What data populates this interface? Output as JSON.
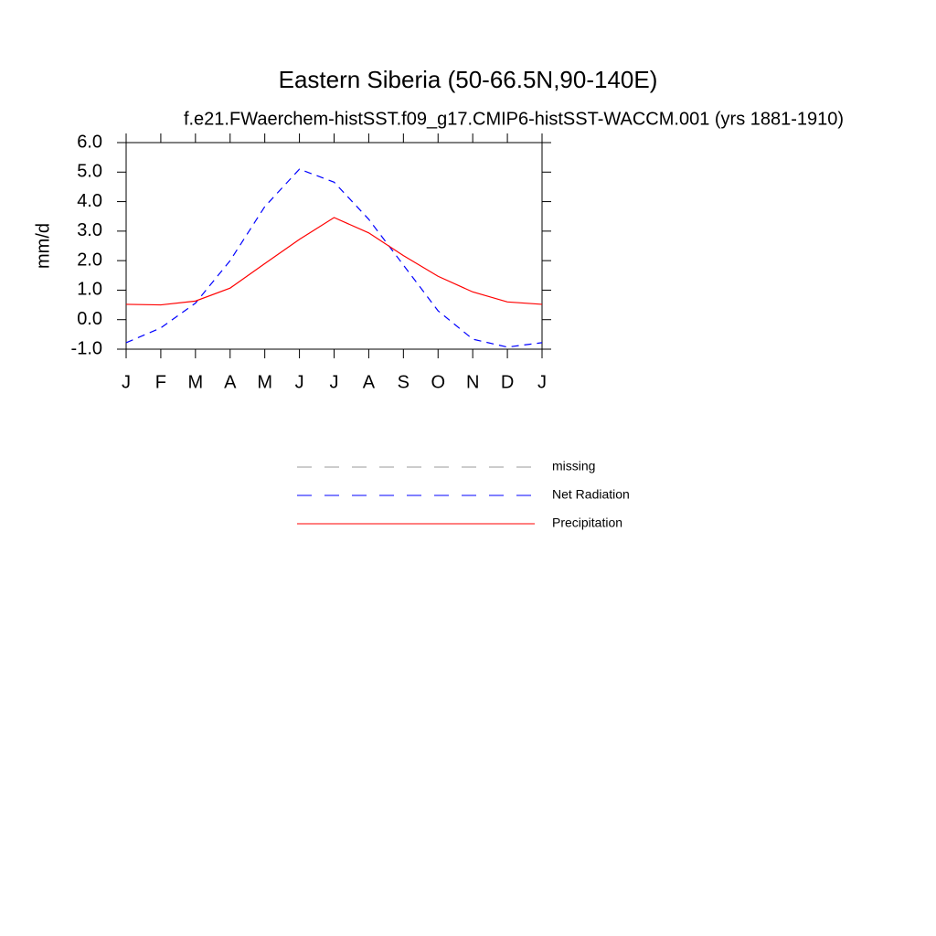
{
  "chart_data": {
    "type": "line",
    "title": "Eastern Siberia (50-66.5N,90-140E)",
    "subtitle": "f.e21.FWaerchem-histSST.f09_g17.CMIP6-histSST-WACCM.001 (yrs 1881-1910)",
    "y_label": "mm/d",
    "categories": [
      "J",
      "F",
      "M",
      "A",
      "M",
      "J",
      "J",
      "A",
      "S",
      "O",
      "N",
      "D",
      "J"
    ],
    "series": [
      {
        "name": "missing",
        "color": "#999999",
        "dash": true,
        "values": [
          null,
          null,
          null,
          null,
          null,
          null,
          null,
          null,
          null,
          null,
          null,
          null,
          null
        ]
      },
      {
        "name": "Net Radiation",
        "color": "#0000ff",
        "dash": true,
        "values": [
          -0.78,
          -0.28,
          0.56,
          2.0,
          3.83,
          5.1,
          4.66,
          3.4,
          1.85,
          0.3,
          -0.66,
          -0.93,
          -0.78
        ]
      },
      {
        "name": "Precipitation",
        "color": "#ff0000",
        "dash": false,
        "values": [
          0.52,
          0.5,
          0.63,
          1.07,
          1.9,
          2.72,
          3.46,
          2.94,
          2.17,
          1.47,
          0.94,
          0.6,
          0.52
        ]
      }
    ],
    "ylim": [
      -1,
      6
    ],
    "yticks": [
      {
        "value": -1,
        "label": "-1.0"
      },
      {
        "value": 0,
        "label": "0.0"
      },
      {
        "value": 1,
        "label": "1.0"
      },
      {
        "value": 2,
        "label": "2.0"
      },
      {
        "value": 3,
        "label": "3.0"
      },
      {
        "value": 4,
        "label": "4.0"
      },
      {
        "value": 5,
        "label": "5.0"
      },
      {
        "value": 6,
        "label": "6.0"
      }
    ],
    "grid": false
  }
}
